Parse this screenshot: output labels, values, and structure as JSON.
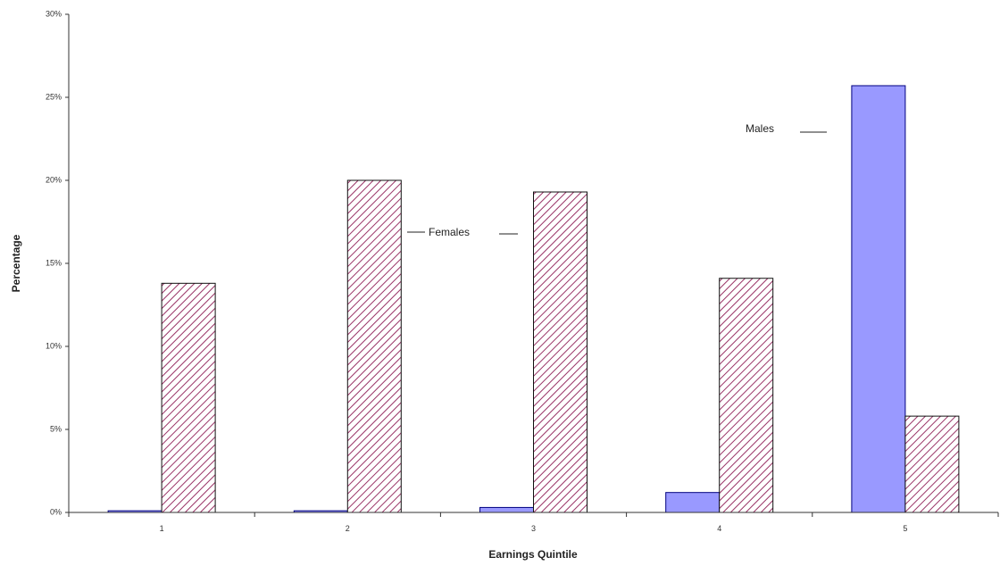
{
  "chart_data": {
    "type": "bar",
    "title": "",
    "xlabel": "Earnings Quintile",
    "ylabel": "Percentage",
    "categories": [
      "1",
      "2",
      "3",
      "4",
      "5"
    ],
    "ylim": [
      0,
      30
    ],
    "yticks": [
      0,
      5,
      10,
      15,
      20,
      25,
      30
    ],
    "ytick_labels": [
      "0%",
      "5%",
      "10%",
      "15%",
      "20%",
      "25%",
      "30%"
    ],
    "grid": false,
    "legend": "none",
    "series": [
      {
        "values": [
          0.1,
          0.1,
          0.3,
          1.2,
          25.7
        ],
        "color": "#9999ff",
        "pattern": "solid"
      },
      {
        "values": [
          13.8,
          20.0,
          19.3,
          14.1,
          5.8
        ],
        "color": "#993366",
        "fill": "#ffffff",
        "pattern": "diagonal-hatch"
      }
    ],
    "annotations": [
      {
        "text": "Females",
        "series": 1
      },
      {
        "text": "Males",
        "series": 0
      }
    ]
  }
}
